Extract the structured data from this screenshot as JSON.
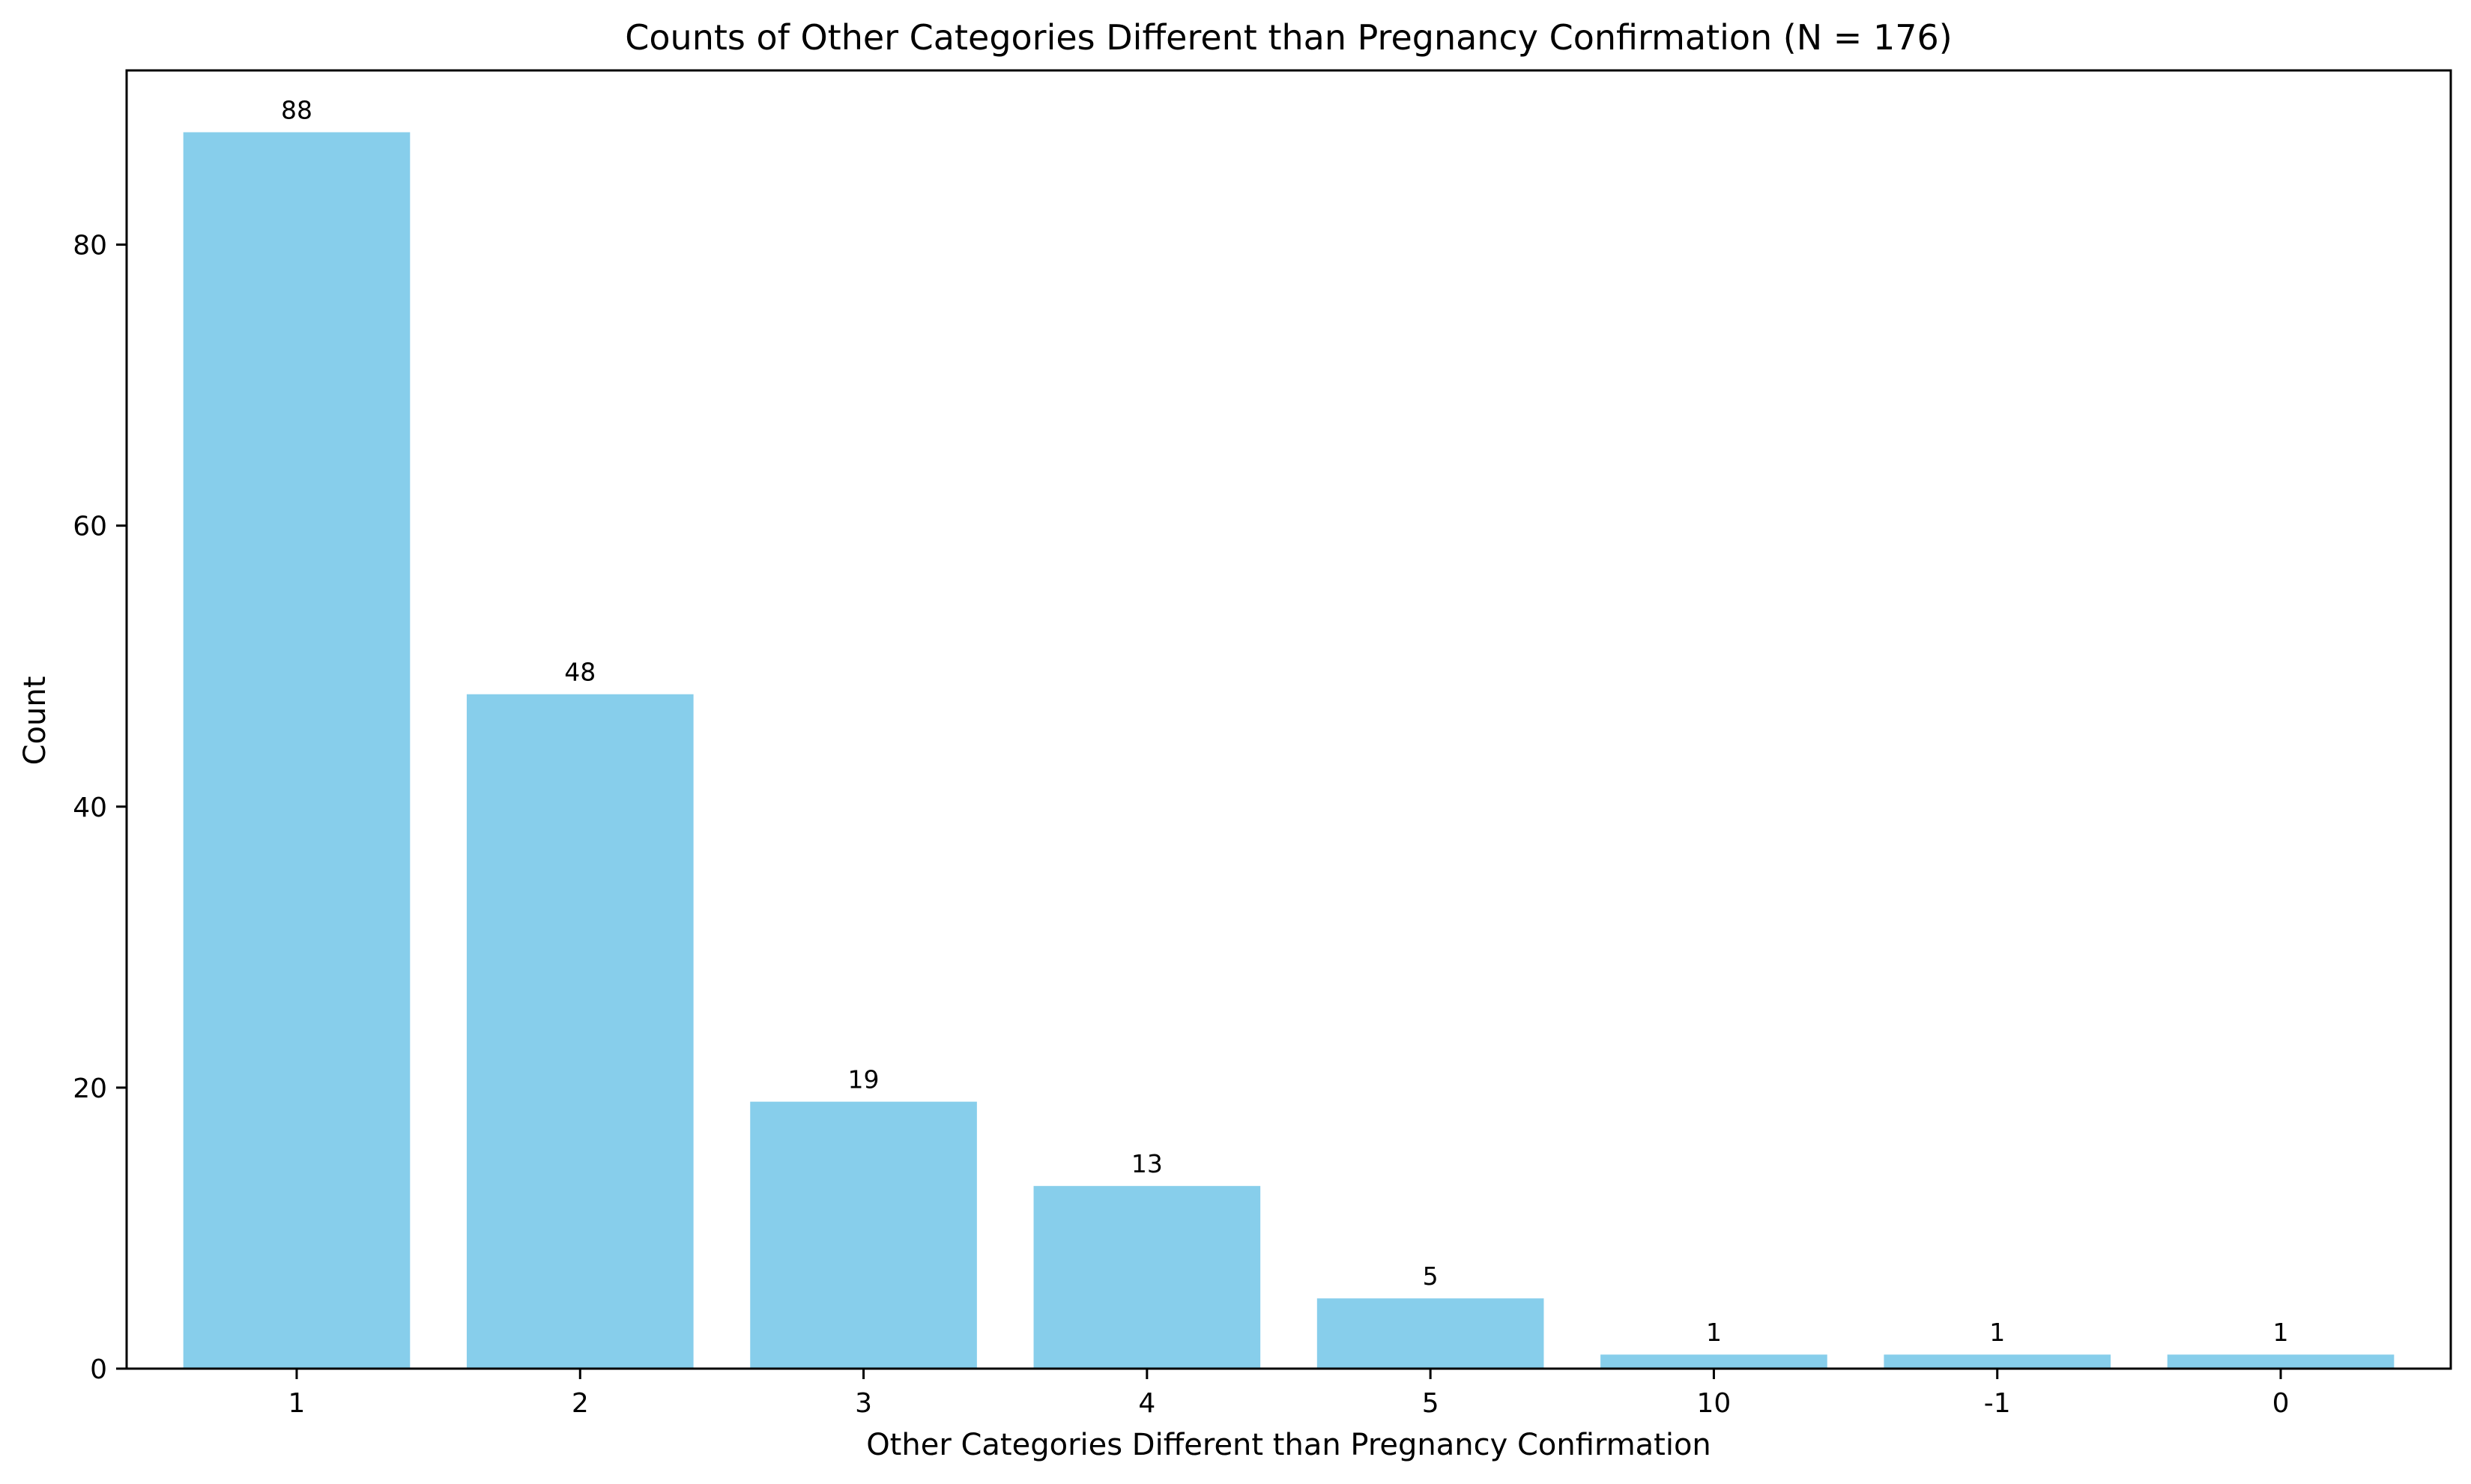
{
  "chart_data": {
    "type": "bar",
    "title": "Counts of Other Categories Different than Pregnancy Confirmation (N = 176)",
    "xlabel": "Other Categories Different than Pregnancy Confirmation",
    "ylabel": "Count",
    "categories": [
      "1",
      "2",
      "3",
      "4",
      "5",
      "10",
      "-1",
      "0"
    ],
    "values": [
      88,
      48,
      19,
      13,
      5,
      1,
      1,
      1
    ],
    "data_labels": [
      "88",
      "48",
      "19",
      "13",
      "5",
      "1",
      "1",
      "1"
    ],
    "ylim": [
      0,
      92.4
    ],
    "yticks": [
      0,
      20,
      40,
      60,
      80
    ],
    "ytick_labels": [
      "0",
      "20",
      "40",
      "60",
      "80"
    ],
    "grid": false,
    "legend": "none",
    "bar_color": "#87CEEB"
  }
}
